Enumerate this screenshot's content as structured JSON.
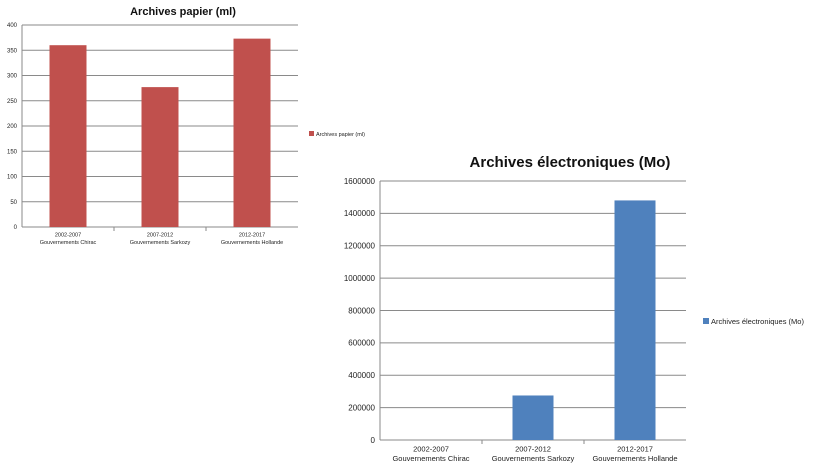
{
  "chart_data": [
    {
      "type": "bar",
      "title": "Archives papier (ml)",
      "categories": [
        [
          "2002-2007",
          "Gouvernements Chirac"
        ],
        [
          "2007-2012",
          "Gouvernements Sarkozy"
        ],
        [
          "2012-2017",
          "Gouvernements Hollande"
        ]
      ],
      "series": [
        {
          "name": "Archives papier (ml)",
          "values": [
            360,
            277,
            373
          ],
          "color": "#c0504d"
        }
      ],
      "ylim": [
        0,
        400
      ],
      "yticks": [
        "0",
        "50",
        "100",
        "150",
        "200",
        "250",
        "300",
        "350",
        "400"
      ],
      "grid": true,
      "legend_position": "right"
    },
    {
      "type": "bar",
      "title": "Archives électroniques (Mo)",
      "categories": [
        [
          "2002-2007",
          "Gouvernements Chirac"
        ],
        [
          "2007-2012",
          "Gouvernements Sarkozy"
        ],
        [
          "2012-2017",
          "Gouvernements Hollande"
        ]
      ],
      "series": [
        {
          "name": "Archives électroniques (Mo)",
          "values": [
            0,
            275000,
            1480000
          ],
          "color": "#4f81bd"
        }
      ],
      "ylim": [
        0,
        1600000
      ],
      "yticks": [
        "0",
        "200000",
        "400000",
        "600000",
        "800000",
        "1000000",
        "1200000",
        "1400000",
        "1600000"
      ],
      "grid": true,
      "legend_position": "right"
    }
  ]
}
